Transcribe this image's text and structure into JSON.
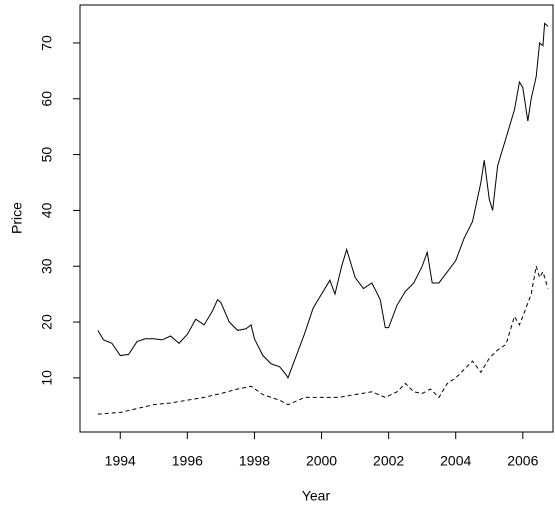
{
  "chart_data": {
    "type": "line",
    "xlabel": "Year",
    "ylabel": "Price",
    "xlim": [
      1992.8,
      2006.9
    ],
    "ylim": [
      0.3,
      76.8
    ],
    "xticks": [
      1994,
      1996,
      1998,
      2000,
      2002,
      2004,
      2006
    ],
    "yticks": [
      10,
      20,
      30,
      40,
      50,
      60,
      70
    ],
    "series": [
      {
        "color": "#000000",
        "linestyle": "solid",
        "x": [
          1993.33,
          1993.5,
          1993.75,
          1994.0,
          1994.25,
          1994.5,
          1994.75,
          1995.0,
          1995.25,
          1995.5,
          1995.75,
          1996.0,
          1996.25,
          1996.5,
          1996.75,
          1996.9,
          1997.0,
          1997.25,
          1997.5,
          1997.75,
          1997.9,
          1998.0,
          1998.25,
          1998.5,
          1998.75,
          1998.95,
          1999.0,
          1999.25,
          1999.5,
          1999.75,
          2000.0,
          2000.25,
          2000.4,
          2000.6,
          2000.75,
          2000.9,
          2001.0,
          2001.25,
          2001.5,
          2001.75,
          2001.9,
          2002.0,
          2002.25,
          2002.5,
          2002.75,
          2003.0,
          2003.15,
          2003.3,
          2003.5,
          2003.75,
          2004.0,
          2004.25,
          2004.5,
          2004.75,
          2004.85,
          2005.0,
          2005.1,
          2005.25,
          2005.5,
          2005.75,
          2005.9,
          2006.0,
          2006.15,
          2006.25,
          2006.4,
          2006.5,
          2006.6,
          2006.65,
          2006.75
        ],
        "values": [
          18.5,
          16.8,
          16.2,
          14,
          14.2,
          16.5,
          17,
          17,
          16.8,
          17.5,
          16.2,
          17.8,
          20.5,
          19.5,
          22,
          24,
          23.5,
          20,
          18.5,
          18.8,
          19.5,
          17,
          14,
          12.5,
          12,
          10.5,
          10,
          14,
          18,
          22.5,
          25,
          27.5,
          25,
          30,
          33,
          30,
          28,
          26,
          27,
          24,
          19,
          19,
          23,
          25.5,
          27,
          30,
          32.5,
          27,
          27,
          29,
          31,
          35,
          38,
          45,
          49,
          42,
          40,
          48,
          53,
          58,
          63,
          62,
          56,
          60,
          64,
          70,
          69.5,
          73.5,
          73
        ]
      },
      {
        "color": "#000000",
        "linestyle": "dashed",
        "x": [
          1993.33,
          1993.75,
          1994.0,
          1994.5,
          1995.0,
          1995.5,
          1996.0,
          1996.5,
          1997.0,
          1997.5,
          1997.9,
          1998.25,
          1998.75,
          1999.0,
          1999.5,
          2000.0,
          2000.5,
          2001.0,
          2001.5,
          2001.9,
          2002.25,
          2002.5,
          2002.75,
          2003.0,
          2003.25,
          2003.5,
          2003.75,
          2004.0,
          2004.5,
          2004.75,
          2005.0,
          2005.25,
          2005.5,
          2005.75,
          2005.9,
          2006.0,
          2006.25,
          2006.4,
          2006.5,
          2006.6,
          2006.75
        ],
        "values": [
          3.5,
          3.7,
          3.8,
          4.5,
          5.2,
          5.5,
          6,
          6.5,
          7.2,
          8,
          8.5,
          7,
          6,
          5.2,
          6.5,
          6.5,
          6.5,
          7,
          7.5,
          6.5,
          7.5,
          9,
          7.5,
          7.2,
          8,
          6.5,
          9,
          10,
          13,
          11,
          13.5,
          15,
          16,
          21,
          19.5,
          21,
          25,
          30,
          28,
          29,
          26
        ]
      }
    ]
  }
}
